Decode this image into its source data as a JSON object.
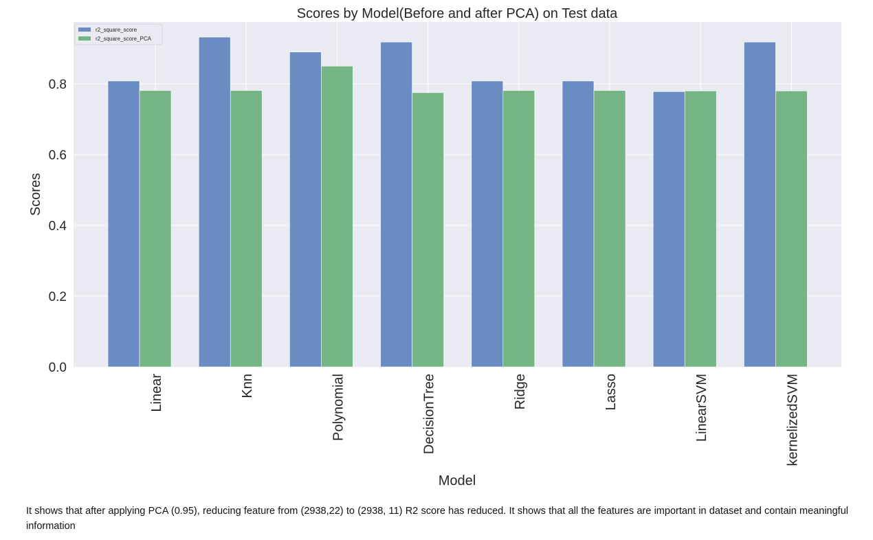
{
  "chart_data": {
    "type": "bar",
    "title": "Scores by Model(Before and after PCA) on Test data",
    "xlabel": "Model",
    "ylabel": "Scores",
    "ylim": [
      0,
      0.98
    ],
    "yticks": [
      "0.0",
      "0.2",
      "0.4",
      "0.6",
      "0.8"
    ],
    "grid": true,
    "legend_position": "top-left",
    "categories": [
      "Linear",
      "Knn",
      "Polynomial",
      "DecisionTree",
      "Ridge",
      "Lasso",
      "LinearSVM",
      "kernelizedSVM"
    ],
    "series": [
      {
        "name": "r2_square_score",
        "color": "#6b8bc3",
        "values": [
          0.808,
          0.932,
          0.89,
          0.918,
          0.808,
          0.808,
          0.778,
          0.918
        ]
      },
      {
        "name": "r2_square_score_PCA",
        "color": "#74b485",
        "values": [
          0.781,
          0.781,
          0.85,
          0.775,
          0.781,
          0.781,
          0.78,
          0.78
        ]
      }
    ],
    "colors": {
      "plot_background": "#eaeaf2",
      "grid": "#ffffff"
    }
  },
  "caption": "It shows that after applying PCA (0.95), reducing feature from (2938,22) to (2938, 11) R2 score has reduced. It shows that all the features are important in dataset and contain meaningful information"
}
